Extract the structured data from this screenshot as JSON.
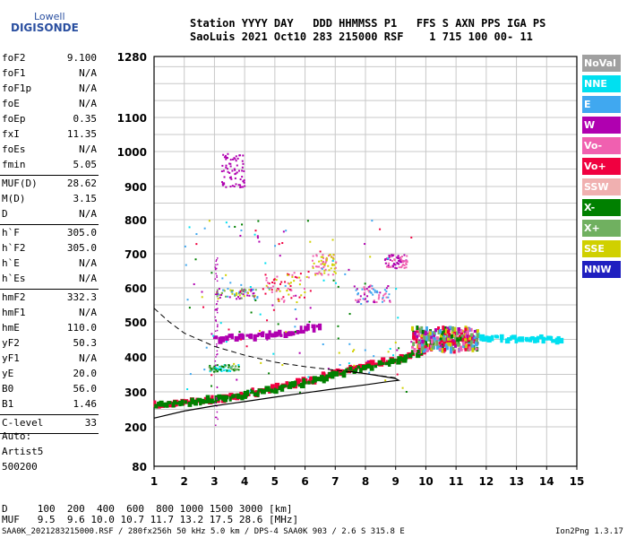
{
  "logo": {
    "line1": "Lowell",
    "line2": "DIGISONDE"
  },
  "header": {
    "line1": "Station YYYY DAY   DDD HHMMSS P1   FFS S AXN PPS IGA PS",
    "line2": "SaoLuis 2021 Oct10 283 215000 RSF    1 715 100 00- 11"
  },
  "params": [
    {
      "name": "foF2",
      "value": "9.100"
    },
    {
      "name": "foF1",
      "value": "N/A"
    },
    {
      "name": "foF1p",
      "value": "N/A"
    },
    {
      "name": "foE",
      "value": "N/A"
    },
    {
      "name": "foEp",
      "value": "0.35"
    },
    {
      "name": "fxI",
      "value": "11.35"
    },
    {
      "name": "foEs",
      "value": "N/A"
    },
    {
      "name": "fmin",
      "value": "5.05"
    },
    {
      "name": "MUF(D)",
      "value": "28.62"
    },
    {
      "name": "M(D)",
      "value": "3.15"
    },
    {
      "name": "D",
      "value": "N/A"
    },
    {
      "name": "h`F",
      "value": "305.0"
    },
    {
      "name": "h`F2",
      "value": "305.0"
    },
    {
      "name": "h`E",
      "value": "N/A"
    },
    {
      "name": "h`Es",
      "value": "N/A"
    },
    {
      "name": "hmF2",
      "value": "332.3"
    },
    {
      "name": "hmF1",
      "value": "N/A"
    },
    {
      "name": "hmE",
      "value": "110.0"
    },
    {
      "name": "yF2",
      "value": "50.3"
    },
    {
      "name": "yF1",
      "value": "N/A"
    },
    {
      "name": "yE",
      "value": "20.0"
    },
    {
      "name": "B0",
      "value": "56.0"
    },
    {
      "name": "B1",
      "value": "1.46"
    },
    {
      "name": "C-level",
      "value": "33"
    }
  ],
  "auto": {
    "line1": "Auto:",
    "line2": "Artist5",
    "line3": "500200"
  },
  "legend": [
    {
      "label": "NoVal",
      "color": "#a0a0a0"
    },
    {
      "label": "NNE",
      "color": "#00e0f0"
    },
    {
      "label": "E",
      "color": "#40a8f0"
    },
    {
      "label": "W",
      "color": "#b000b0"
    },
    {
      "label": "Vo-",
      "color": "#f060b0"
    },
    {
      "label": "Vo+",
      "color": "#f00040"
    },
    {
      "label": "SSW",
      "color": "#f0b0b0"
    },
    {
      "label": "X-",
      "color": "#008000"
    },
    {
      "label": "X+",
      "color": "#70b060"
    },
    {
      "label": "SSE",
      "color": "#d0d000"
    },
    {
      "label": "NNW",
      "color": "#2020c0"
    }
  ],
  "bottom": {
    "d_line": "D     100  200  400  600  800 1000 1500 3000 [km]",
    "muf_line": "MUF   9.5  9.6 10.0 10.7 11.7 13.2 17.5 28.6 [MHz]"
  },
  "footer": {
    "left": "SAA0K_2021283215000.RSF / 280fx256h 50 kHz 5.0 km / DPS-4 SAA0K 903 / 2.6 S 315.8 E",
    "right": "Ion2Png 1.3.17"
  },
  "chart_data": {
    "type": "scatter",
    "x_ticks": [
      1,
      2,
      3,
      4,
      5,
      6,
      7,
      8,
      9,
      10,
      11,
      12,
      13,
      14,
      15
    ],
    "y_ticks": [
      80,
      200,
      300,
      400,
      500,
      600,
      700,
      800,
      900,
      1000,
      1100,
      1280
    ],
    "xlim": [
      1,
      15
    ],
    "ylim": [
      80,
      1280
    ],
    "grid": true,
    "legend_position": "right",
    "traces": [
      {
        "name": "o-trace",
        "color": "#f00040",
        "points": [
          [
            1.0,
            262
          ],
          [
            2.0,
            268
          ],
          [
            3.0,
            280
          ],
          [
            4.0,
            295
          ],
          [
            5.0,
            312
          ],
          [
            6.0,
            330
          ],
          [
            6.5,
            343
          ],
          [
            7.0,
            360
          ],
          [
            7.5,
            368
          ],
          [
            8.0,
            375
          ],
          [
            8.5,
            385
          ],
          [
            9.0,
            392
          ],
          [
            9.5,
            405
          ],
          [
            10.0,
            425
          ],
          [
            10.5,
            442
          ],
          [
            11.0,
            450
          ],
          [
            11.5,
            455
          ]
        ]
      },
      {
        "name": "x-trace",
        "color": "#008000",
        "points": [
          [
            1.0,
            262
          ],
          [
            2.0,
            267
          ],
          [
            3.0,
            278
          ],
          [
            4.0,
            292
          ],
          [
            5.0,
            308
          ],
          [
            6.0,
            326
          ],
          [
            7.0,
            352
          ],
          [
            8.0,
            370
          ],
          [
            9.0,
            390
          ],
          [
            10.0,
            420
          ]
        ]
      },
      {
        "name": "second-hop",
        "color": "#b000b0",
        "points": [
          [
            3.0,
            450
          ],
          [
            3.5,
            455
          ],
          [
            4.0,
            458
          ],
          [
            4.5,
            462
          ],
          [
            5.0,
            465
          ],
          [
            5.5,
            470
          ],
          [
            6.0,
            480
          ],
          [
            6.5,
            490
          ]
        ]
      },
      {
        "name": "nne-echoes",
        "color": "#00e0f0",
        "points": [
          [
            11.5,
            455
          ],
          [
            12.0,
            455
          ],
          [
            12.5,
            452
          ],
          [
            13.0,
            450
          ],
          [
            13.5,
            452
          ],
          [
            14.0,
            450
          ],
          [
            14.5,
            450
          ]
        ]
      }
    ],
    "profile_line": [
      [
        1.0,
        225
      ],
      [
        2.0,
        245
      ],
      [
        3.0,
        260
      ],
      [
        4.0,
        272
      ],
      [
        5.0,
        285
      ],
      [
        6.0,
        297
      ],
      [
        7.0,
        309
      ],
      [
        8.0,
        320
      ],
      [
        8.8,
        330
      ],
      [
        9.1,
        333
      ],
      [
        9.0,
        338
      ],
      [
        8.5,
        345
      ],
      [
        8.0,
        352
      ],
      [
        7.5,
        358
      ]
    ],
    "muf_curve": [
      [
        1.0,
        540
      ],
      [
        1.5,
        500
      ],
      [
        2.0,
        468
      ],
      [
        3.0,
        430
      ],
      [
        4.0,
        405
      ],
      [
        5.0,
        385
      ],
      [
        6.0,
        372
      ],
      [
        7.0,
        362
      ],
      [
        8.0,
        352
      ],
      [
        9.0,
        340
      ]
    ]
  }
}
